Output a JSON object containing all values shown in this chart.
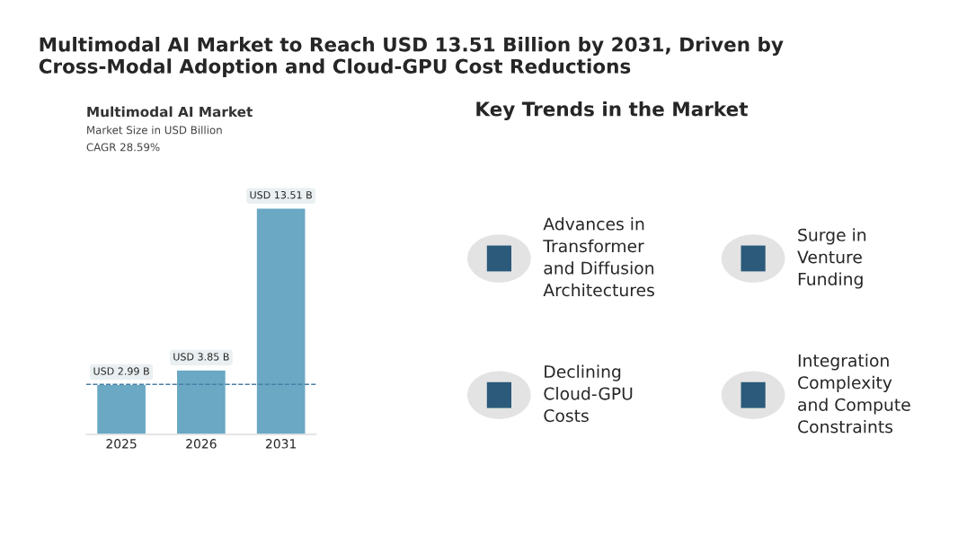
{
  "chart_data": [
    {
      "type": "other",
      "title": "Multimodal AI Market to Reach USD 13.51 Billion by 2031, Driven by\nCross-Modal Adoption and Cloud-GPU Cost Reductions"
    },
    {
      "type": "bar",
      "title": "Multimodal AI Market",
      "subtitle": "Market Size in USD Billion",
      "annotations": [
        "CAGR 28.59%"
      ],
      "categories": [
        "2025",
        "2026",
        "2031"
      ],
      "values": [
        2.99,
        3.85,
        13.51
      ],
      "color": "#6aa8c4",
      "value_labels": [
        "USD 2.99 B",
        "USD 3.85 B",
        "USD 13.51 B"
      ],
      "ref_lines": [
        {
          "axis": "y",
          "value": 2.99,
          "color": "#4a7fa6",
          "line_style": "dashed"
        }
      ]
    },
    {
      "type": "other",
      "title": "Key Trends in the Market",
      "annotations": [
        "Advances in\nTransformer\nand Diffusion\nArchitectures",
        "Surge in\nVenture\nFunding",
        "Declining\nCloud-GPU\nCosts",
        "Integration\nComplexity\nand Compute\nConstraints"
      ]
    }
  ]
}
